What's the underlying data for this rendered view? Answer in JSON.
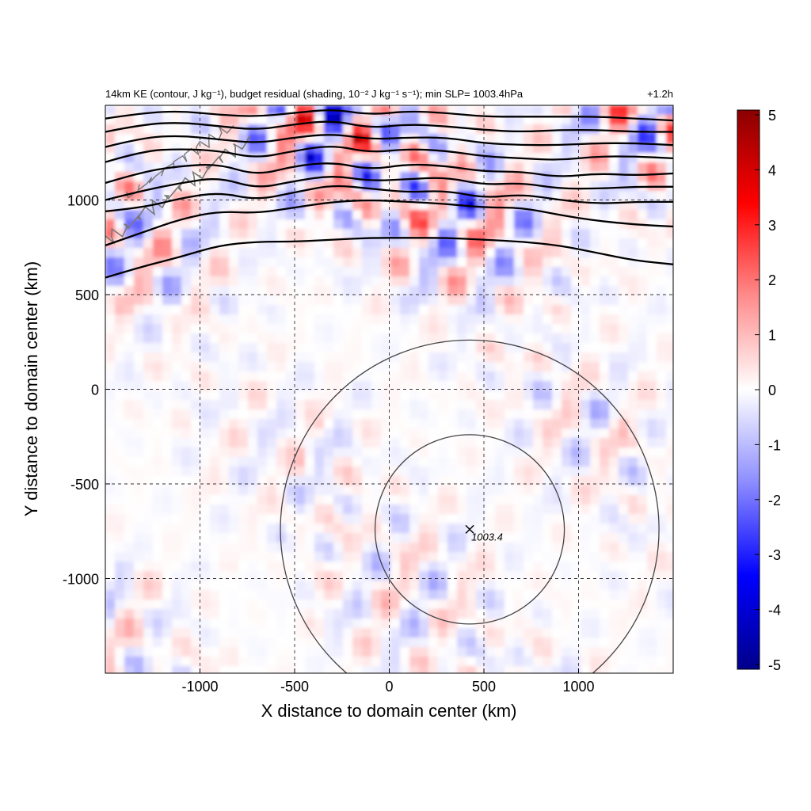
{
  "chart_data": {
    "type": "heatmap",
    "title": "14km KE (contour, J kg⁻¹), budget residual (shading, 10⁻² J kg⁻¹ s⁻¹); min SLP= 1003.4hPa",
    "time_label": "+1.2h",
    "xlabel": "X distance to domain center (km)",
    "ylabel": "Y distance to domain center (km)",
    "xlim": [
      -1500,
      1500
    ],
    "ylim": [
      -1500,
      1500
    ],
    "x_ticks": [
      -1000,
      -500,
      0,
      500,
      1000
    ],
    "x_tick_labels": [
      "-1000",
      "-500",
      "0",
      "500",
      "1000"
    ],
    "y_ticks": [
      -1000,
      -500,
      0,
      500,
      1000
    ],
    "y_tick_labels": [
      "-1000",
      "-500",
      "0",
      "500",
      "1000"
    ],
    "grid": true,
    "colorbar": {
      "min": -5,
      "max": 5,
      "ticks": [
        5,
        4,
        3,
        2,
        1,
        0,
        -1,
        -2,
        -3,
        -4,
        -5
      ],
      "tick_labels": [
        "5",
        "4",
        "3",
        "2",
        "1",
        "0",
        "-1",
        "-2",
        "-3",
        "-4",
        "-5"
      ],
      "colors": [
        "#00008b",
        "#0000ff",
        "#8c8cff",
        "#ffffff",
        "#ff8c8c",
        "#ff0000",
        "#8b0000"
      ]
    },
    "center_marker": {
      "x": 425,
      "y": -740,
      "label": "1003.4"
    },
    "range_rings_km": [
      500,
      1000
    ],
    "ke_contours": [
      {
        "x": [
          -1500,
          -1300,
          -1100,
          -900,
          -700,
          -500,
          -300,
          -100,
          100,
          300,
          500,
          700,
          900,
          1100,
          1300,
          1500
        ],
        "y": [
          590,
          650,
          700,
          760,
          780,
          780,
          790,
          800,
          800,
          800,
          790,
          780,
          760,
          720,
          680,
          660
        ]
      },
      {
        "x": [
          -1500,
          -1300,
          -1100,
          -900,
          -700,
          -500,
          -300,
          -100,
          100,
          300,
          500,
          700,
          900,
          1100,
          1300,
          1500
        ],
        "y": [
          760,
          830,
          900,
          940,
          930,
          960,
          990,
          1000,
          990,
          980,
          960,
          960,
          920,
          890,
          870,
          860
        ]
      },
      {
        "x": [
          -1500,
          -1300,
          -1100,
          -900,
          -700,
          -500,
          -300,
          -100,
          100,
          300,
          500,
          700,
          900,
          1100,
          1300,
          1500
        ],
        "y": [
          940,
          960,
          1010,
          1040,
          1000,
          1040,
          1080,
          1060,
          1040,
          1050,
          1010,
          1030,
          1000,
          980,
          990,
          990
        ]
      },
      {
        "x": [
          -1500,
          -1300,
          -1100,
          -900,
          -700,
          -500,
          -300,
          -100,
          100,
          300,
          500,
          700,
          900,
          1100,
          1300,
          1500
        ],
        "y": [
          1000,
          1050,
          1090,
          1120,
          1060,
          1100,
          1130,
          1100,
          1110,
          1120,
          1080,
          1090,
          1060,
          1060,
          1070,
          1070
        ]
      },
      {
        "x": [
          -1500,
          -1300,
          -1100,
          -900,
          -700,
          -500,
          -300,
          -100,
          100,
          300,
          500,
          700,
          900,
          1100,
          1300,
          1500
        ],
        "y": [
          1090,
          1150,
          1180,
          1190,
          1130,
          1180,
          1200,
          1160,
          1190,
          1180,
          1150,
          1150,
          1120,
          1140,
          1130,
          1140
        ]
      },
      {
        "x": [
          -1500,
          -1300,
          -1100,
          -900,
          -700,
          -500,
          -300,
          -100,
          100,
          300,
          500,
          700,
          900,
          1100,
          1300,
          1500
        ],
        "y": [
          1200,
          1260,
          1270,
          1260,
          1220,
          1260,
          1290,
          1250,
          1270,
          1260,
          1230,
          1220,
          1210,
          1230,
          1230,
          1220
        ]
      },
      {
        "x": [
          -1500,
          -1300,
          -1100,
          -900,
          -700,
          -500,
          -300,
          -100,
          100,
          300,
          500,
          700,
          900,
          1100,
          1300,
          1500
        ],
        "y": [
          1280,
          1330,
          1340,
          1320,
          1300,
          1330,
          1350,
          1320,
          1330,
          1330,
          1300,
          1290,
          1290,
          1300,
          1300,
          1290
        ]
      },
      {
        "x": [
          -1500,
          -1300,
          -1100,
          -900,
          -700,
          -500,
          -300,
          -100,
          100,
          300,
          500,
          700,
          900,
          1100,
          1300,
          1500
        ],
        "y": [
          1360,
          1400,
          1410,
          1390,
          1370,
          1400,
          1420,
          1380,
          1400,
          1390,
          1370,
          1360,
          1370,
          1370,
          1360,
          1360
        ]
      },
      {
        "x": [
          -1500,
          -1300,
          -1100,
          -900,
          -700,
          -500,
          -300,
          -100,
          100,
          300,
          500,
          700,
          900,
          1100,
          1300,
          1500
        ],
        "y": [
          1430,
          1460,
          1470,
          1450,
          1440,
          1460,
          1480,
          1450,
          1470,
          1460,
          1440,
          1440,
          1440,
          1440,
          1430,
          1420
        ]
      }
    ]
  }
}
